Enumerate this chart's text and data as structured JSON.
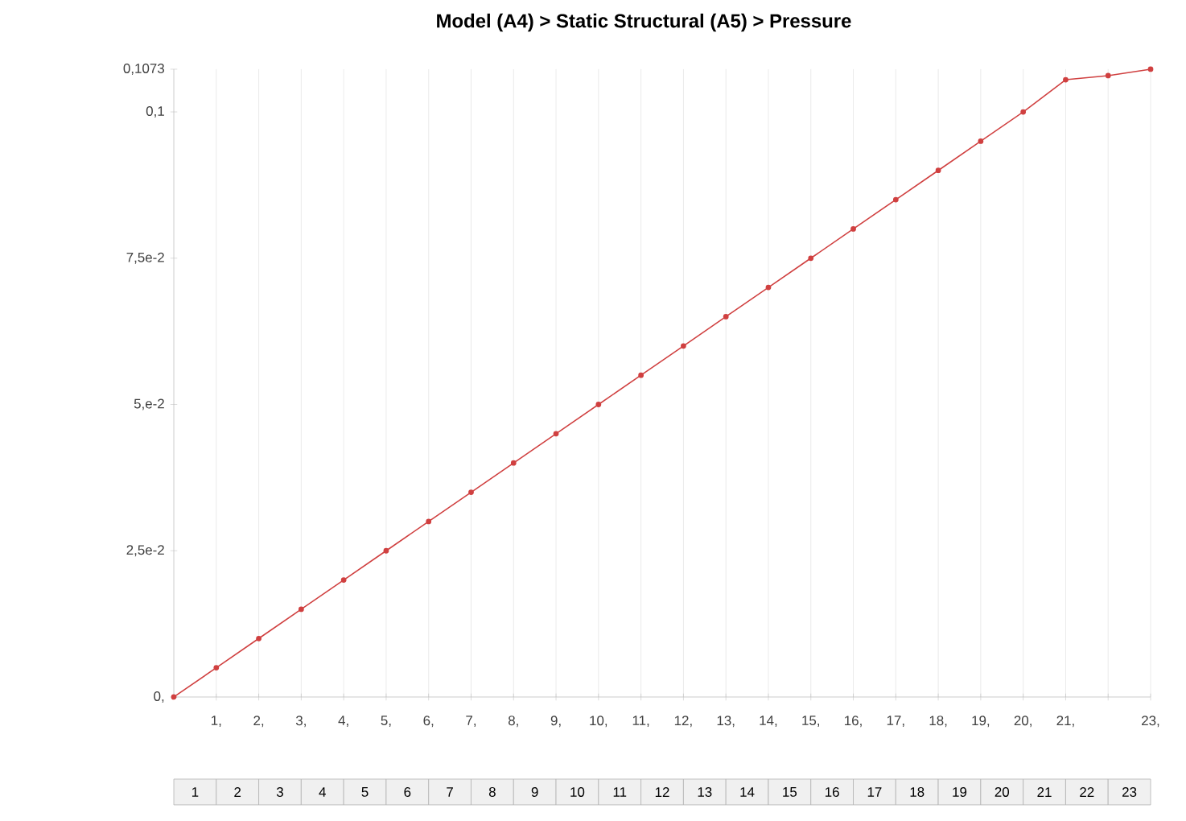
{
  "chart_data": {
    "type": "line",
    "title": "Model (A4) > Static Structural (A5) > Pressure",
    "x": [
      0,
      1,
      2,
      3,
      4,
      5,
      6,
      7,
      8,
      9,
      10,
      11,
      12,
      13,
      14,
      15,
      16,
      17,
      18,
      19,
      20,
      21,
      22,
      23
    ],
    "series": [
      {
        "color": "#d04040",
        "values": [
          0,
          0.005,
          0.01,
          0.015,
          0.02,
          0.025,
          0.03,
          0.035,
          0.04,
          0.045,
          0.05,
          0.055,
          0.06,
          0.065,
          0.07,
          0.075,
          0.08,
          0.085,
          0.09,
          0.095,
          0.1,
          0.1055,
          0.1062,
          0.1073
        ]
      }
    ],
    "xlim": [
      0,
      23
    ],
    "xticks": [
      {
        "value": 1,
        "label": "1,"
      },
      {
        "value": 2,
        "label": "2,"
      },
      {
        "value": 3,
        "label": "3,"
      },
      {
        "value": 4,
        "label": "4,"
      },
      {
        "value": 5,
        "label": "5,"
      },
      {
        "value": 6,
        "label": "6,"
      },
      {
        "value": 7,
        "label": "7,"
      },
      {
        "value": 8,
        "label": "8,"
      },
      {
        "value": 9,
        "label": "9,"
      },
      {
        "value": 10,
        "label": "10,"
      },
      {
        "value": 11,
        "label": "11,"
      },
      {
        "value": 12,
        "label": "12,"
      },
      {
        "value": 13,
        "label": "13,"
      },
      {
        "value": 14,
        "label": "14,"
      },
      {
        "value": 15,
        "label": "15,"
      },
      {
        "value": 16,
        "label": "16,"
      },
      {
        "value": 17,
        "label": "17,"
      },
      {
        "value": 18,
        "label": "18,"
      },
      {
        "value": 19,
        "label": "19,"
      },
      {
        "value": 20,
        "label": "20,"
      },
      {
        "value": 21,
        "label": "21,"
      },
      {
        "value": 22,
        "label": null
      },
      {
        "value": 23,
        "label": "23,"
      }
    ],
    "ylim": [
      0,
      0.1073
    ],
    "yticks": [
      {
        "value": 0,
        "label": "0,"
      },
      {
        "value": 0.025,
        "label": "2,5e-2"
      },
      {
        "value": 0.05,
        "label": "5,e-2"
      },
      {
        "value": 0.075,
        "label": "7,5e-2"
      },
      {
        "value": 0.1,
        "label": "0,1"
      },
      {
        "value": 0.1073,
        "label": "0,1073"
      }
    ],
    "grid": "x",
    "marker": "circle",
    "line_style": "solid",
    "annotations": [
      "1",
      "2",
      "3",
      "4",
      "5",
      "6",
      "7",
      "8",
      "9",
      "10",
      "11",
      "12",
      "13",
      "14",
      "15",
      "16",
      "17",
      "18",
      "19",
      "20",
      "21",
      "22",
      "23"
    ]
  }
}
